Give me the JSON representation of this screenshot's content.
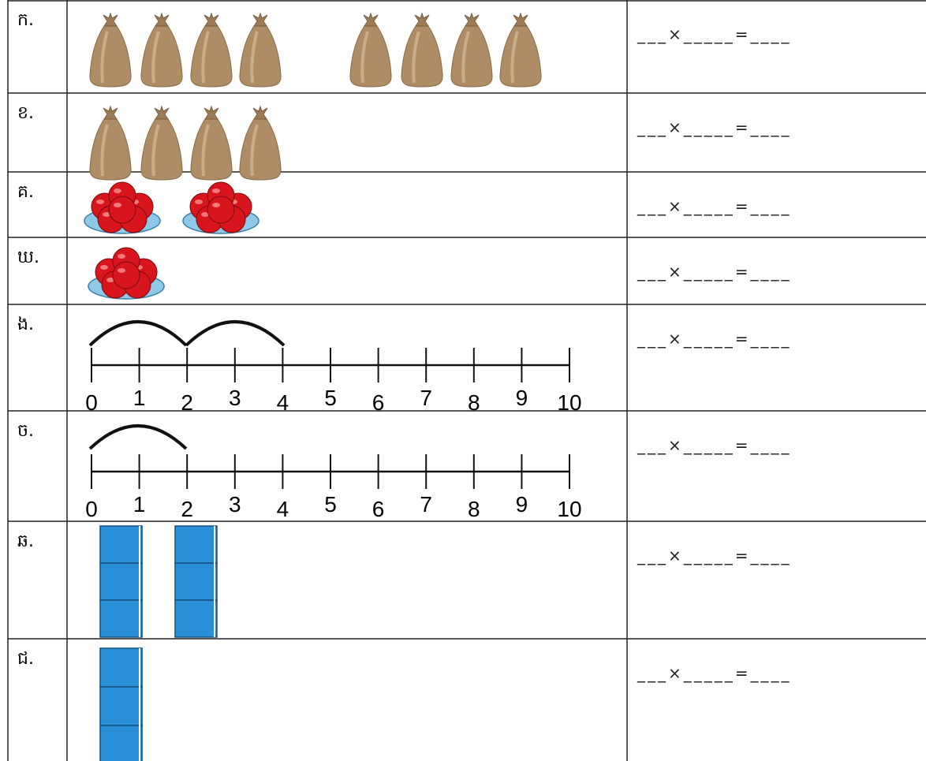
{
  "rows": [
    {
      "label": "ក.",
      "answer": "___×_____=____"
    },
    {
      "label": "ខ.",
      "answer": "___×_____=____"
    },
    {
      "label": "គ.",
      "answer": "___×_____=____"
    },
    {
      "label": "ឃ.",
      "answer": "___×_____=____"
    },
    {
      "label": "ង.",
      "answer": "___×_____=____",
      "number_line": [
        0,
        1,
        2,
        3,
        4,
        5,
        6,
        7,
        8,
        9,
        10
      ]
    },
    {
      "label": "ច.",
      "answer": "___×_____=____",
      "number_line": [
        0,
        1,
        2,
        3,
        4,
        5,
        6,
        7,
        8,
        9,
        10
      ]
    },
    {
      "label": "ឆ.",
      "answer": "___×_____=____"
    },
    {
      "label": "ជ.",
      "answer": "___×_____=____"
    }
  ]
}
